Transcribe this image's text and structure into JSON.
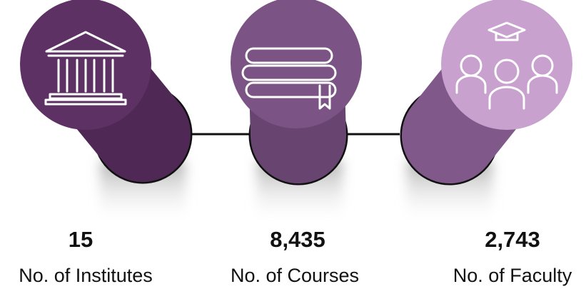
{
  "items": [
    {
      "value": "15",
      "label": "No. of Institutes"
    },
    {
      "value": "8,435",
      "label": "No. of Courses"
    },
    {
      "value": "2,743",
      "label": "No. of Faculty"
    }
  ]
}
